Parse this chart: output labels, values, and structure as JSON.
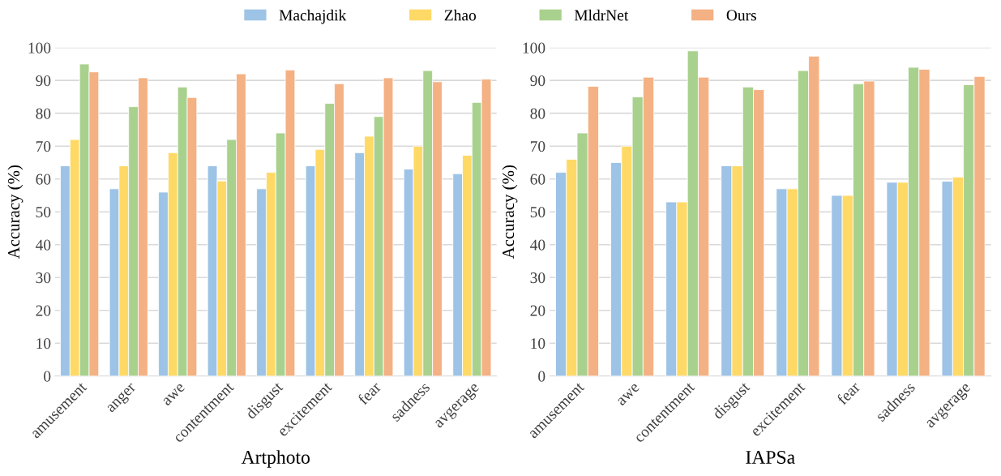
{
  "chart_data": [
    {
      "type": "bar",
      "xlabel": "Artphoto",
      "ylabel": "Accuracy (%)",
      "categories": [
        "amusement",
        "anger",
        "awe",
        "contentment",
        "disgust",
        "excitement",
        "fear",
        "sadness",
        "avgerage"
      ],
      "ylim": [
        0,
        100
      ],
      "yticks": [
        0,
        10,
        20,
        30,
        40,
        50,
        60,
        70,
        80,
        90,
        100
      ],
      "grid": "y",
      "legend": "top",
      "series": [
        {
          "name": "Machajdik",
          "color": "#9dc3e6",
          "values": [
            64,
            57,
            56,
            64,
            57,
            64,
            68,
            63,
            61.6
          ]
        },
        {
          "name": "Zhao",
          "color": "#ffd966",
          "values": [
            72,
            64,
            68,
            59.4,
            62,
            69,
            73,
            70,
            67.2
          ]
        },
        {
          "name": "MldrNet",
          "color": "#a9d18e",
          "values": [
            95,
            82,
            88,
            72,
            74,
            83,
            79,
            93,
            83.3
          ]
        },
        {
          "name": "Ours",
          "color": "#f4b183",
          "values": [
            92.6,
            90.8,
            84.8,
            92,
            93.2,
            89,
            90.8,
            89.6,
            90.4
          ]
        }
      ]
    },
    {
      "type": "bar",
      "xlabel": "IAPSa",
      "ylabel": "Accuracy (%)",
      "categories": [
        "amusement",
        "awe",
        "contentment",
        "disgust",
        "excitement",
        "fear",
        "sadness",
        "avgerage"
      ],
      "ylim": [
        0,
        100
      ],
      "yticks": [
        0,
        10,
        20,
        30,
        40,
        50,
        60,
        70,
        80,
        90,
        100
      ],
      "grid": "y",
      "series": [
        {
          "color": "#9dc3e6",
          "values": [
            62,
            65,
            53,
            64,
            57,
            55,
            59,
            59.3
          ]
        },
        {
          "color": "#ffd966",
          "values": [
            66,
            70,
            53,
            64,
            57,
            55,
            59,
            60.6
          ]
        },
        {
          "color": "#a9d18e",
          "values": [
            74,
            85,
            99,
            88,
            93,
            89,
            94,
            88.7
          ]
        },
        {
          "color": "#f4b183",
          "values": [
            88.2,
            91,
            91,
            87.2,
            97.4,
            89.8,
            93.4,
            91.2
          ]
        }
      ]
    }
  ]
}
